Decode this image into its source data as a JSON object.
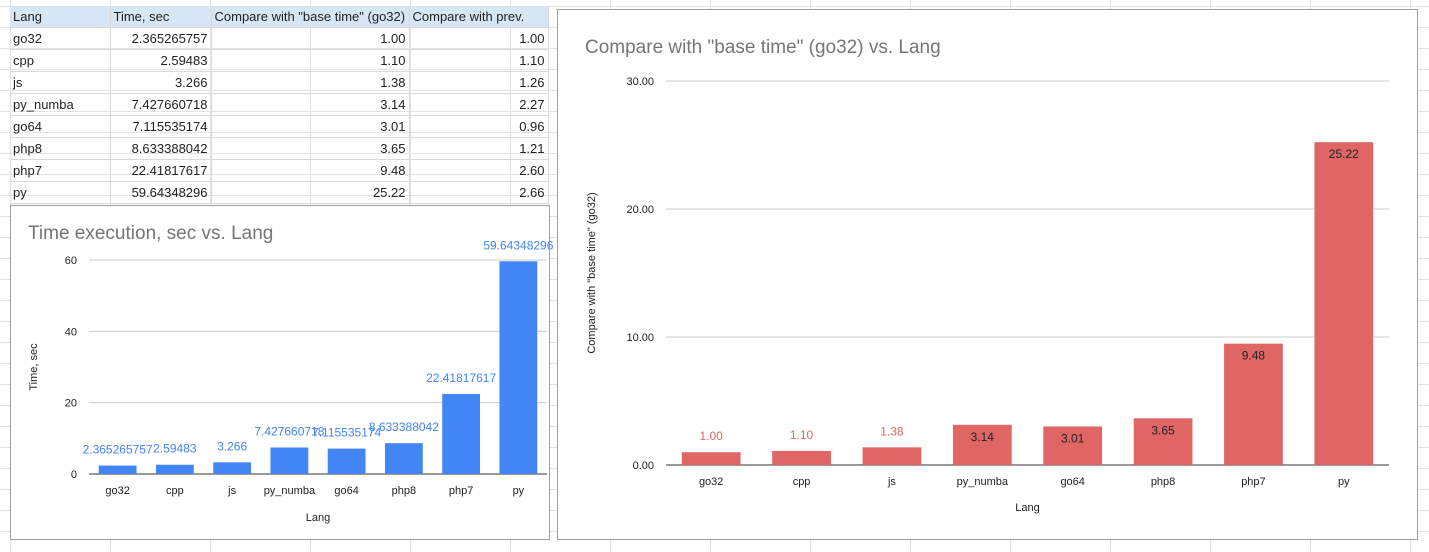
{
  "spreadsheet": {
    "headers": [
      "Lang",
      "Time, sec",
      "Compare with \"base time\" (go32)",
      "Compare with prev."
    ],
    "rows": [
      [
        "go32",
        "2.365265757",
        "1.00",
        "1.00"
      ],
      [
        "cpp",
        "2.59483",
        "1.10",
        "1.10"
      ],
      [
        "js",
        "3.266",
        "1.38",
        "1.26"
      ],
      [
        "py_numba",
        "7.427660718",
        "3.14",
        "2.27"
      ],
      [
        "go64",
        "7.115535174",
        "3.01",
        "0.96"
      ],
      [
        "php8",
        "8.633388042",
        "3.65",
        "1.21"
      ],
      [
        "php7",
        "22.41817617",
        "9.48",
        "2.60"
      ],
      [
        "py",
        "59.64348296",
        "25.22",
        "2.66"
      ]
    ]
  },
  "chart_data": [
    {
      "type": "bar",
      "title": "Time execution, sec vs. Lang",
      "xlabel": "Lang",
      "ylabel": "Time, sec",
      "categories": [
        "go32",
        "cpp",
        "js",
        "py_numba",
        "go64",
        "php8",
        "php7",
        "py"
      ],
      "values": [
        2.365265757,
        2.59483,
        3.266,
        7.427660718,
        7.115535174,
        8.633388042,
        22.41817617,
        59.64348296
      ],
      "data_labels": [
        "2.365265757",
        "2.59483",
        "3.266",
        "7.427660718",
        "7.115535174",
        "8.633388042",
        "22.41817617",
        "59.64348296"
      ],
      "ylim": [
        0,
        60
      ],
      "yticks": [
        "0",
        "20",
        "40",
        "60"
      ],
      "grid": true,
      "color": "#4285f4"
    },
    {
      "type": "bar",
      "title": "Compare with \"base time\" (go32) vs. Lang",
      "xlabel": "Lang",
      "ylabel": "Compare with \"base time\" (go32)",
      "categories": [
        "go32",
        "cpp",
        "js",
        "py_numba",
        "go64",
        "php8",
        "php7",
        "py"
      ],
      "values": [
        1.0,
        1.1,
        1.38,
        3.14,
        3.01,
        3.65,
        9.48,
        25.22
      ],
      "data_labels": [
        "1.00",
        "1.10",
        "1.38",
        "3.14",
        "3.01",
        "3.65",
        "9.48",
        "25.22"
      ],
      "ylim": [
        0,
        30
      ],
      "yticks": [
        "0.00",
        "10.00",
        "20.00",
        "30.00"
      ],
      "grid": true,
      "color": "#e06666"
    }
  ]
}
